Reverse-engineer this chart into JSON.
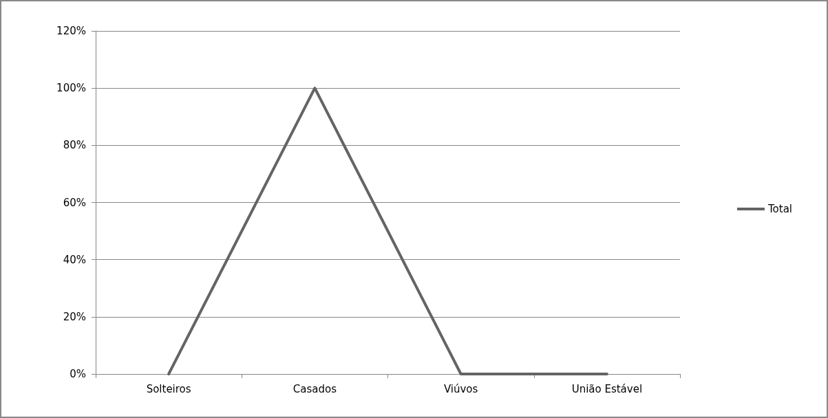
{
  "chart_data": {
    "type": "line",
    "categories": [
      "Solteiros",
      "Casados",
      "Viúvos",
      "União Estável"
    ],
    "series": [
      {
        "name": "Total",
        "color": "#646464",
        "values": [
          0,
          100,
          0,
          0
        ]
      }
    ],
    "ylim": [
      0,
      120
    ],
    "yticks": [
      {
        "value": 0,
        "label": "0%"
      },
      {
        "value": 20,
        "label": "20%"
      },
      {
        "value": 40,
        "label": "40%"
      },
      {
        "value": 60,
        "label": "60%"
      },
      {
        "value": 80,
        "label": "80%"
      },
      {
        "value": 100,
        "label": "100%"
      },
      {
        "value": 120,
        "label": "120%"
      }
    ],
    "grid": "y",
    "legend": "right",
    "marker": "none",
    "line_style": "solid"
  }
}
